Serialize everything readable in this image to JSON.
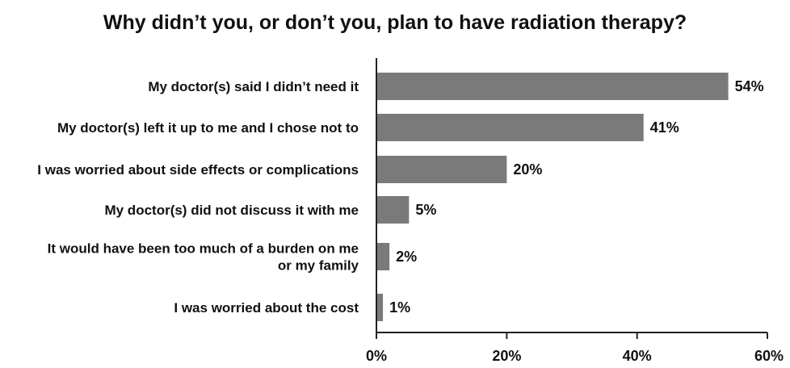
{
  "chart_data": {
    "type": "bar",
    "orientation": "horizontal",
    "title": "Why didn’t you, or don’t you, plan to have radiation therapy?",
    "categories": [
      [
        "My doctor(s) said I didn’t need it"
      ],
      [
        "My doctor(s) left it up to me and I chose not to"
      ],
      [
        "I was worried about side effects or complications"
      ],
      [
        "My doctor(s) did not discuss it with me"
      ],
      [
        "It would have been too much of a burden on me",
        "or my family"
      ],
      [
        "I was worried about the cost"
      ]
    ],
    "values": [
      54,
      41,
      20,
      5,
      2,
      1
    ],
    "value_labels": [
      "54%",
      "41%",
      "20%",
      "5%",
      "2%",
      "1%"
    ],
    "xlim": [
      0,
      60
    ],
    "xticks": [
      0,
      20,
      40,
      60
    ],
    "xtick_labels": [
      "0%",
      "20%",
      "40%",
      "60%"
    ],
    "grid": false,
    "bar_color": "#7a7a7a",
    "axis_color": "#222222"
  }
}
